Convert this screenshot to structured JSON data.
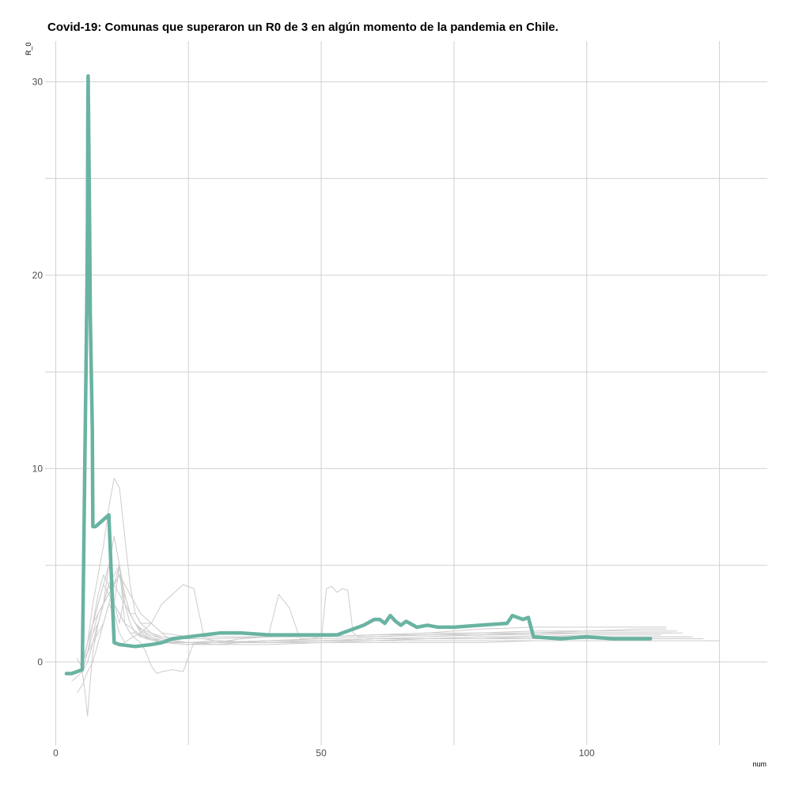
{
  "chart_data": {
    "type": "line",
    "title": "Covid-19: Comunas que superaron un R0 de 3 en algún momento de la pandemia en Chile.",
    "xlabel": "num",
    "ylabel": "R_0",
    "xlim": [
      -2,
      134
    ],
    "ylim": [
      -4.3,
      32.1
    ],
    "x_ticks": [
      0,
      50,
      100
    ],
    "y_ticks": [
      0,
      10,
      20,
      30
    ],
    "x_minor": [
      25,
      75,
      125
    ],
    "y_minor": [
      5,
      15,
      25
    ],
    "grid": true,
    "colors": {
      "highlight": "#69b3a2",
      "background": "#cccccc",
      "grid": "#d0d0d0"
    },
    "highlight_series": {
      "x": [
        2,
        3,
        4,
        5,
        5.3,
        5.5,
        5.7,
        5.9,
        6,
        6.05,
        6.1,
        6.2,
        6.3,
        6.4,
        6.5,
        6.7,
        6.9,
        7,
        7.5,
        10,
        11,
        12,
        15,
        18,
        20,
        22,
        25,
        28,
        31,
        35,
        40,
        45,
        50,
        53,
        55,
        58,
        60,
        61,
        62,
        63,
        64,
        65,
        66,
        68,
        70,
        72,
        75,
        80,
        85,
        86,
        87,
        88,
        89,
        90,
        95,
        100,
        105,
        112
      ],
      "y": [
        -0.6,
        -0.6,
        -0.5,
        -0.4,
        6,
        10.5,
        15,
        19.5,
        23.5,
        28,
        30.3,
        28,
        25,
        22,
        18,
        15,
        12,
        7,
        7,
        7.6,
        1,
        0.9,
        0.8,
        0.9,
        1.0,
        1.2,
        1.3,
        1.4,
        1.5,
        1.5,
        1.4,
        1.4,
        1.4,
        1.4,
        1.6,
        1.9,
        2.2,
        2.2,
        2.0,
        2.4,
        2.1,
        1.9,
        2.1,
        1.8,
        1.9,
        1.8,
        1.8,
        1.9,
        2.0,
        2.4,
        2.3,
        2.2,
        2.3,
        1.3,
        1.2,
        1.3,
        1.2,
        1.2
      ]
    },
    "background_series": [
      {
        "x": [
          3,
          5,
          6,
          7,
          8,
          9,
          10,
          11,
          12,
          13,
          14,
          15,
          16,
          18,
          20,
          25,
          30,
          40,
          50,
          60,
          70,
          80,
          90,
          100,
          110,
          115
        ],
        "y": [
          -1,
          -0.5,
          0.5,
          2,
          3.5,
          4.5,
          4,
          3,
          2,
          3.5,
          2.5,
          2,
          1.5,
          1.2,
          1.0,
          1.0,
          1.1,
          1.0,
          1.1,
          1.2,
          1.3,
          1.4,
          1.5,
          1.6,
          1.7,
          1.7
        ]
      },
      {
        "x": [
          4,
          5,
          6,
          7,
          8,
          9,
          10,
          11,
          12,
          13,
          14,
          15,
          16,
          18,
          20,
          25,
          30,
          40,
          50,
          60,
          70,
          80,
          90,
          100,
          110,
          118
        ],
        "y": [
          0.2,
          -0.3,
          1,
          3,
          4.5,
          6,
          8,
          9.5,
          9,
          6.5,
          4,
          2.5,
          2,
          1.5,
          1.2,
          1.0,
          1.0,
          1.1,
          1.2,
          1.3,
          1.4,
          1.4,
          1.5,
          1.5,
          1.5,
          1.5
        ]
      },
      {
        "x": [
          4,
          5,
          6,
          7,
          8,
          9,
          10,
          11,
          12,
          13,
          14,
          16,
          18,
          20,
          22,
          25,
          30,
          35,
          40,
          50,
          60,
          70,
          80,
          90,
          100,
          110,
          120
        ],
        "y": [
          -1.6,
          -1.2,
          -0.5,
          0,
          1,
          2,
          3,
          2.5,
          1.5,
          1.0,
          1.2,
          1.5,
          2,
          1.5,
          1.0,
          1.0,
          0.9,
          1.0,
          1.0,
          1.1,
          1.2,
          1.2,
          1.3,
          1.3,
          1.3,
          1.3,
          1.3
        ]
      },
      {
        "x": [
          5,
          5.5,
          6,
          6.5,
          7,
          8,
          9,
          10,
          11,
          12,
          13,
          14,
          15,
          16,
          18,
          20,
          25,
          30,
          40,
          50,
          60,
          70,
          80,
          90,
          100,
          110,
          114
        ],
        "y": [
          -0.5,
          -1.5,
          -2.8,
          -1,
          0.5,
          2,
          3,
          4,
          3,
          2.5,
          2,
          1.5,
          1.5,
          1.3,
          1.2,
          1.1,
          1.0,
          1.0,
          1.1,
          1.1,
          1.2,
          1.2,
          1.3,
          1.3,
          1.4,
          1.4,
          1.4
        ]
      },
      {
        "x": [
          6,
          7,
          8,
          9,
          10,
          11,
          12,
          13,
          14,
          15,
          16,
          17,
          18,
          19,
          20,
          22,
          24,
          26,
          30,
          40,
          50,
          60,
          70,
          80,
          90,
          100,
          110,
          122
        ],
        "y": [
          0,
          1,
          2,
          3,
          4,
          3,
          5,
          2,
          1.5,
          1.2,
          1.0,
          0.5,
          -0.2,
          -0.6,
          -0.5,
          -0.4,
          -0.5,
          1.0,
          1.0,
          1.1,
          1.1,
          1.2,
          1.2,
          1.2,
          1.2,
          1.2,
          1.2,
          1.2
        ]
      },
      {
        "x": [
          5,
          6,
          7,
          8,
          9,
          10,
          11,
          12,
          13,
          14,
          15,
          16,
          18,
          20,
          22,
          24,
          26,
          28,
          30,
          40,
          50,
          60,
          70,
          80,
          90,
          100,
          110,
          125
        ],
        "y": [
          0,
          1,
          2,
          3,
          4,
          5,
          4,
          3.5,
          3,
          2.5,
          2.5,
          2,
          2,
          3,
          3.5,
          4,
          3.8,
          1.2,
          1.1,
          1.0,
          1.0,
          1.1,
          1.1,
          1.1,
          1.1,
          1.1,
          1.1,
          1.1
        ]
      },
      {
        "x": [
          5,
          6,
          7,
          8,
          9,
          10,
          11,
          12,
          13,
          14,
          15,
          17,
          20,
          25,
          30,
          35,
          40,
          42,
          44,
          46,
          48,
          50,
          60,
          70,
          80,
          90,
          100,
          110,
          117
        ],
        "y": [
          -0.5,
          0,
          1,
          2,
          3,
          4,
          4.5,
          5,
          3,
          2,
          1.5,
          1.2,
          1.0,
          0.9,
          1.0,
          1.2,
          1.3,
          3.5,
          2.8,
          1.2,
          1.2,
          1.3,
          1.4,
          1.5,
          1.5,
          1.6,
          1.6,
          1.6,
          1.6
        ]
      },
      {
        "x": [
          5,
          6,
          7,
          8,
          9,
          10,
          11,
          12,
          13,
          14,
          15,
          17,
          20,
          25,
          30,
          40,
          50,
          51,
          52,
          53,
          54,
          55,
          56,
          57,
          58,
          60,
          70,
          80,
          90,
          100,
          110,
          112
        ],
        "y": [
          0,
          0.5,
          1,
          1.5,
          2,
          3,
          4,
          5,
          3.5,
          2.5,
          2,
          1.5,
          1.2,
          1.0,
          1.0,
          1.1,
          1.2,
          3.8,
          3.9,
          3.6,
          3.8,
          3.7,
          1.5,
          1.3,
          1.3,
          1.3,
          1.4,
          1.4,
          1.4,
          1.5,
          1.5,
          1.5
        ]
      },
      {
        "x": [
          6,
          7,
          8,
          9,
          10,
          11,
          12,
          13,
          14,
          15,
          16,
          18,
          20,
          25,
          30,
          40,
          50,
          60,
          70,
          80,
          90,
          100,
          110,
          115
        ],
        "y": [
          0.5,
          1.5,
          2.5,
          3,
          3.5,
          4,
          4.5,
          4,
          3.5,
          3,
          2.5,
          2,
          1.5,
          1.3,
          1.3,
          1.3,
          1.3,
          1.4,
          1.5,
          1.7,
          1.8,
          1.8,
          1.8,
          1.8
        ]
      },
      {
        "x": [
          6,
          7,
          8,
          9,
          10,
          11,
          12,
          13,
          14,
          15,
          16,
          18,
          20,
          25,
          30,
          40,
          50,
          60,
          70,
          80,
          90,
          100,
          110,
          113
        ],
        "y": [
          1,
          2,
          3,
          4,
          3.5,
          3,
          2.5,
          2,
          1.8,
          1.6,
          1.4,
          1.2,
          1.0,
          0.9,
          0.9,
          0.9,
          1.0,
          1.0,
          1.0,
          1.0,
          1.1,
          1.1,
          1.1,
          1.1
        ]
      },
      {
        "x": [
          7,
          8,
          9,
          10,
          11,
          12,
          13,
          14,
          15,
          16,
          18,
          20,
          25,
          30,
          40,
          50,
          60,
          70,
          80,
          90,
          100,
          110,
          119
        ],
        "y": [
          2,
          2.5,
          3,
          5,
          6.5,
          5,
          3.5,
          2.5,
          2,
          1.6,
          1.3,
          1.1,
          1.0,
          1.0,
          1.0,
          1.1,
          1.1,
          1.2,
          1.2,
          1.3,
          1.3,
          1.3,
          1.3
        ]
      },
      {
        "x": [
          7,
          8,
          9,
          10,
          11,
          12,
          13,
          14,
          15,
          16,
          18,
          20,
          25,
          30,
          40,
          50,
          60,
          70,
          80,
          90,
          100,
          110,
          116
        ],
        "y": [
          1.5,
          2,
          3,
          3.5,
          4,
          4.5,
          3,
          2.5,
          2,
          1.7,
          1.5,
          1.3,
          1.2,
          1.2,
          1.3,
          1.3,
          1.4,
          1.4,
          1.5,
          1.5,
          1.5,
          1.5,
          1.5
        ]
      }
    ]
  }
}
